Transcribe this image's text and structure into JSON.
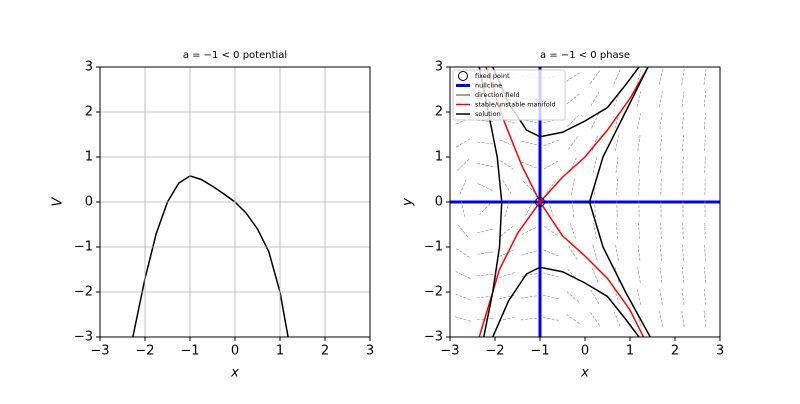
{
  "chart_data": [
    {
      "type": "line",
      "title": "a = −1 < 0 potential",
      "xlabel": "x",
      "ylabel": "V",
      "xlim": [
        -3,
        3
      ],
      "ylim": [
        -3,
        3
      ],
      "grid": true,
      "xticks": [
        {
          "value": -3,
          "label": "−3"
        },
        {
          "value": -2,
          "label": "−2"
        },
        {
          "value": -1,
          "label": "−1"
        },
        0,
        1,
        2,
        3
      ],
      "yticks": [
        {
          "value": -3,
          "label": "−3"
        },
        {
          "value": -2,
          "label": "−2"
        },
        {
          "value": -1,
          "label": "−1"
        },
        0,
        1,
        2,
        3
      ],
      "series": [
        {
          "color": "#000000",
          "x": [
            -2.27,
            -2,
            -1.75,
            -1.5,
            -1.25,
            -1,
            -0.75,
            -0.5,
            -0.25,
            0,
            0.25,
            0.5,
            0.75,
            1,
            1.18
          ],
          "values": [
            -3,
            -1.7,
            -0.7,
            0,
            0.42,
            0.58,
            0.5,
            0.35,
            0.18,
            0,
            -0.25,
            -0.6,
            -1.1,
            -2,
            -3
          ]
        }
      ]
    },
    {
      "type": "phase",
      "title": "a = −1 < 0 phase",
      "xlabel": "x",
      "ylabel": "y",
      "xlim": [
        -3,
        3
      ],
      "ylim": [
        -3,
        3
      ],
      "grid": false,
      "legend": "upper left",
      "xticks": [
        {
          "value": -3,
          "label": "−3"
        },
        {
          "value": -2,
          "label": "−2"
        },
        {
          "value": -1,
          "label": "−1"
        },
        0,
        1,
        2,
        3
      ],
      "yticks": [
        {
          "value": -3,
          "label": "−3"
        },
        {
          "value": -2,
          "label": "−2"
        },
        {
          "value": -1,
          "label": "−1"
        },
        0,
        1,
        2,
        3
      ],
      "series": [
        {
          "name": "fixed point",
          "color": "#000000",
          "points": [
            {
              "x": -1,
              "y": 0
            }
          ]
        },
        {
          "name": "nullcline",
          "color": "#0000ff",
          "lines": [
            {
              "x": [
                -1,
                -1
              ],
              "y": [
                -3,
                3
              ]
            },
            {
              "x": [
                -3,
                3
              ],
              "y": [
                0,
                0
              ]
            }
          ]
        },
        {
          "name": "direction field",
          "color": "#808080"
        },
        {
          "name": "stable/unstable manifold",
          "color": "#ff0000",
          "lines": [
            {
              "x": [
                -2.35,
                -1.9,
                -1.5,
                -1,
                -0.5,
                0,
                0.5,
                1,
                1.4
              ],
              "y": [
                -3,
                -1.5,
                -0.7,
                0,
                0.55,
                1,
                1.6,
                2.3,
                3
              ]
            },
            {
              "x": [
                -2.2,
                -1.8,
                -1.4,
                -1,
                -0.5,
                0,
                0.5,
                1,
                1.3
              ],
              "y": [
                3,
                1.8,
                0.8,
                0,
                -0.75,
                -1.2,
                -1.7,
                -2.4,
                -3
              ]
            }
          ]
        },
        {
          "name": "solution",
          "color": "#000000",
          "lines": [
            {
              "x": [
                -2.25,
                -2.05,
                -1.9,
                -1.85,
                -1.95,
                -2.15,
                -2.35
              ],
              "y": [
                -3,
                -2,
                -1,
                0,
                1,
                2,
                3
              ]
            },
            {
              "x": [
                1.45,
                0.9,
                0.4,
                0.1,
                0.4,
                0.9,
                1.4
              ],
              "y": [
                -3,
                -2,
                -1,
                0,
                1,
                2,
                3
              ]
            },
            {
              "x": [
                -2.05,
                -1.7,
                -1.3,
                -1,
                -0.5,
                0,
                0.5,
                0.9,
                1.2
              ],
              "y": [
                3,
                2.2,
                1.6,
                1.45,
                1.55,
                1.8,
                2.1,
                2.6,
                3
              ]
            },
            {
              "x": [
                -2.05,
                -1.7,
                -1.3,
                -1,
                -0.5,
                0,
                0.5,
                0.9,
                1.2
              ],
              "y": [
                -3,
                -2.2,
                -1.6,
                -1.45,
                -1.55,
                -1.8,
                -2.1,
                -2.6,
                -3
              ]
            }
          ]
        }
      ]
    }
  ]
}
